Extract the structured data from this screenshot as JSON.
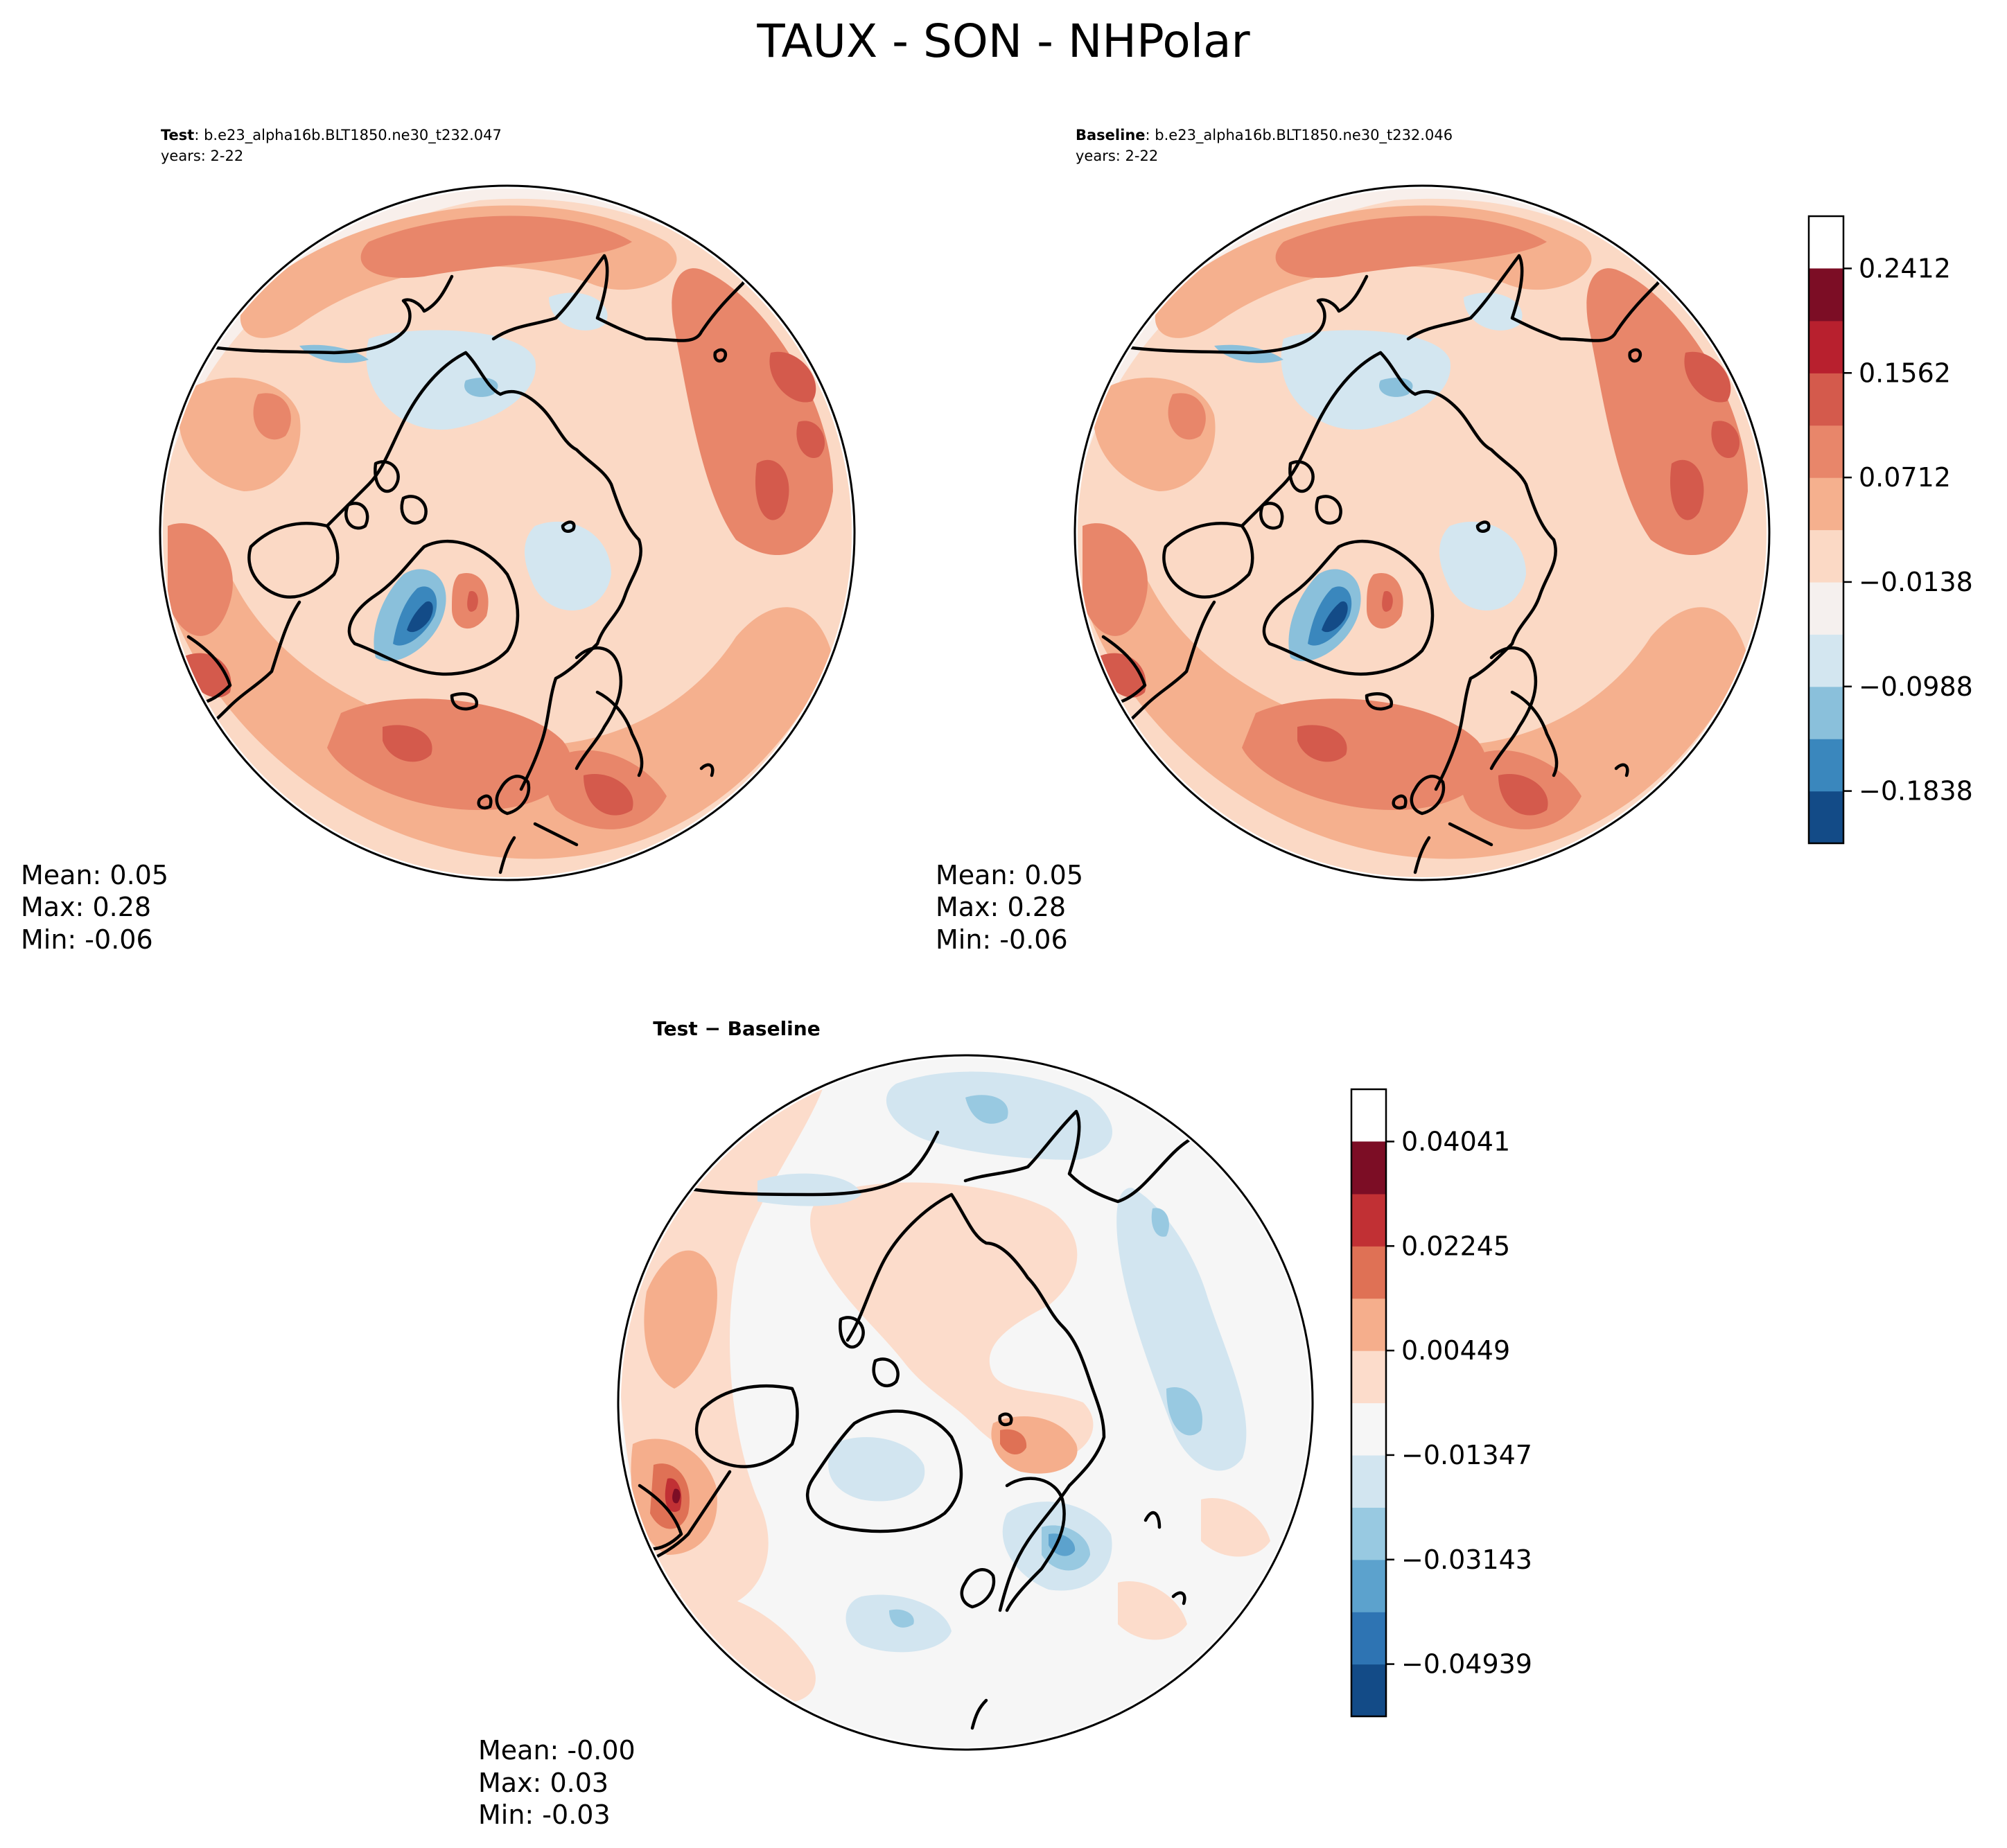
{
  "figure": {
    "title": "TAUX - SON - NHPolar"
  },
  "panels": {
    "test": {
      "label": "Test",
      "case_name": "b.e23_alpha16b.BLT1850.ne30_t232.047",
      "years": "years: 2-22",
      "stats": {
        "mean": "Mean:  0.05",
        "max": "Max:  0.28",
        "min": "Min: -0.06"
      }
    },
    "baseline": {
      "label": "Baseline",
      "case_name": "b.e23_alpha16b.BLT1850.ne30_t232.046",
      "years": "years: 2-22",
      "stats": {
        "mean": "Mean:  0.05",
        "max": "Max:  0.28",
        "min": "Min: -0.06"
      }
    },
    "diff": {
      "title": "Test − Baseline",
      "stats": {
        "mean": "Mean: -0.00",
        "max": "Max:  0.03",
        "min": "Min: -0.03"
      }
    }
  },
  "chart_data": [
    {
      "type": "heatmap",
      "name": "Test",
      "projection": "North Polar Stereographic",
      "variable": "TAUX",
      "season": "SON",
      "colorbar": "shared with Baseline"
    },
    {
      "type": "heatmap",
      "name": "Baseline",
      "projection": "North Polar Stereographic",
      "variable": "TAUX",
      "season": "SON",
      "colorbar": {
        "range": [
          -0.2263,
          0.2837
        ],
        "level_step": 0.0425,
        "tick_values": [
          0.2412,
          0.1562,
          0.0712,
          -0.0138,
          -0.0988,
          -0.1838
        ],
        "tick_labels": [
          "0.2412",
          "0.1562",
          "0.0712",
          "−0.0138",
          "−0.0988",
          "−0.1838"
        ],
        "colors": [
          "#134b87",
          "#3a87bd",
          "#8ac0db",
          "#d3e6f0",
          "#f5f0ee",
          "#fbd9c5",
          "#f5b08e",
          "#e8866a",
          "#d45a4c",
          "#b8202e",
          "#7c0d25"
        ]
      }
    },
    {
      "type": "heatmap",
      "name": "Test − Baseline",
      "projection": "North Polar Stereographic",
      "colorbar": {
        "range": [
          -0.05837,
          0.04939
        ],
        "level_step": 0.00898,
        "tick_values": [
          0.04041,
          0.02245,
          0.00449,
          -0.01347,
          -0.03143,
          -0.04939
        ],
        "tick_labels": [
          "0.04041",
          "0.02245",
          "0.00449",
          "−0.01347",
          "−0.03143",
          "−0.04939"
        ],
        "colors": [
          "#134b87",
          "#2e74b3",
          "#5ca2cd",
          "#98c9e1",
          "#d2e5f0",
          "#f6f6f6",
          "#fcdccb",
          "#f5ae8c",
          "#df7155",
          "#c13034",
          "#7c0d25"
        ]
      }
    }
  ]
}
